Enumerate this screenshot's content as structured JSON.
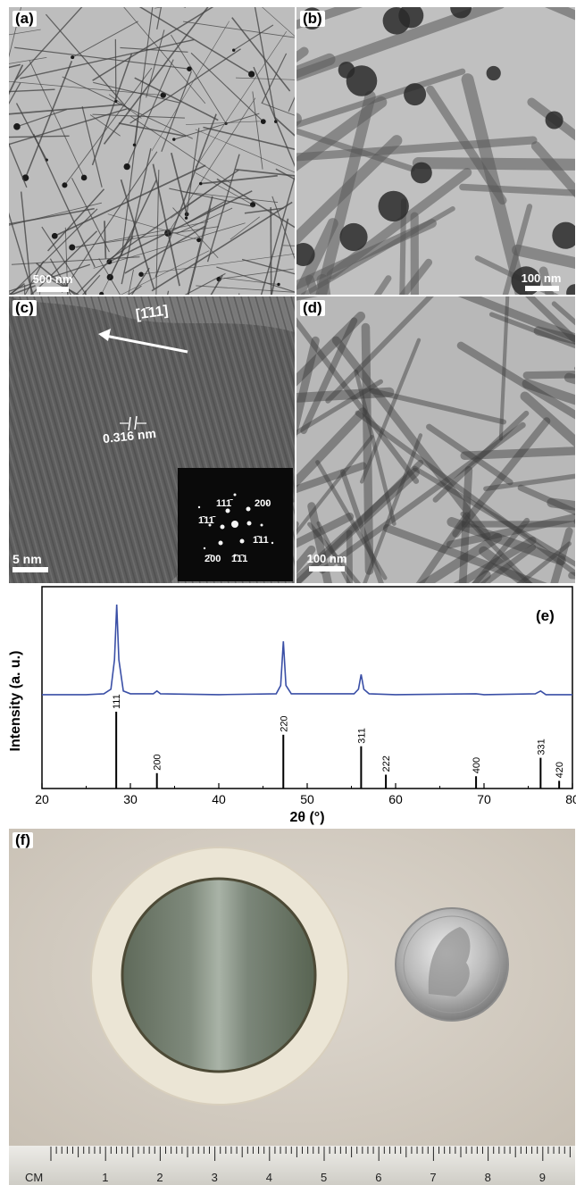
{
  "panels": {
    "a": {
      "label": "(a)",
      "scale": "500 nm"
    },
    "b": {
      "label": "(b)",
      "scale": "100 nm"
    },
    "c": {
      "label": "(c)",
      "scale": "5 nm",
      "direction": "[1̄11]",
      "spacing": "0.316 nm",
      "fft_labels": [
        "111̄",
        "200",
        "1̄11̄",
        "1̄11",
        "2̄00",
        "1̄1̄1"
      ]
    },
    "d": {
      "label": "(d)",
      "scale": "100 nm"
    },
    "e": {
      "label": "(e)"
    },
    "f": {
      "label": "(f)",
      "ruler_unit": "CM",
      "ruler_numbers": [
        "1",
        "2",
        "3",
        "4",
        "5",
        "6",
        "7",
        "8",
        "9"
      ]
    }
  },
  "chart_data": {
    "type": "line",
    "xlabel": "2θ (°)",
    "ylabel": "Intensity (a. u.)",
    "xlim": [
      20,
      80
    ],
    "xticks": [
      20,
      30,
      40,
      50,
      60,
      70,
      80
    ],
    "line_color": "#3a4fa6",
    "series": [
      {
        "values": [
          [
            20,
            2
          ],
          [
            25,
            2
          ],
          [
            27,
            3
          ],
          [
            27.8,
            8
          ],
          [
            28.2,
            40
          ],
          [
            28.45,
            100
          ],
          [
            28.7,
            40
          ],
          [
            29.2,
            6
          ],
          [
            30,
            3
          ],
          [
            32.6,
            3
          ],
          [
            33,
            6
          ],
          [
            33.4,
            3
          ],
          [
            40,
            2
          ],
          [
            46.5,
            3
          ],
          [
            47,
            12
          ],
          [
            47.3,
            60
          ],
          [
            47.6,
            12
          ],
          [
            48.2,
            3
          ],
          [
            55.3,
            3
          ],
          [
            55.8,
            8
          ],
          [
            56.1,
            24
          ],
          [
            56.4,
            8
          ],
          [
            57,
            3
          ],
          [
            60,
            2
          ],
          [
            69.1,
            3
          ],
          [
            70,
            2
          ],
          [
            75.8,
            3
          ],
          [
            76.4,
            6
          ],
          [
            77,
            2
          ],
          [
            80,
            2
          ]
        ]
      }
    ],
    "reference_peaks": [
      {
        "x": 28.4,
        "label": "111",
        "height": 100
      },
      {
        "x": 33.0,
        "label": "200",
        "height": 20
      },
      {
        "x": 47.3,
        "label": "220",
        "height": 70
      },
      {
        "x": 56.1,
        "label": "311",
        "height": 55
      },
      {
        "x": 58.9,
        "label": "222",
        "height": 18
      },
      {
        "x": 69.1,
        "label": "400",
        "height": 16
      },
      {
        "x": 76.4,
        "label": "331",
        "height": 40
      },
      {
        "x": 78.5,
        "label": "420",
        "height": 10
      }
    ]
  }
}
